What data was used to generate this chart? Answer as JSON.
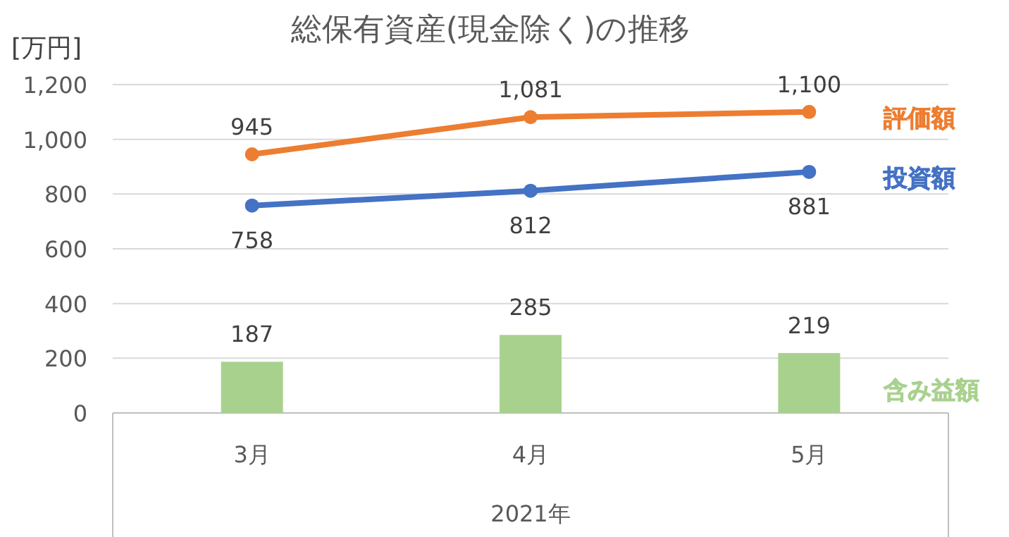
{
  "chart_data": {
    "type": "bar",
    "title": "総保有資産(現金除く)の推移",
    "ylabel": "[万円]",
    "xlabel": "2021年",
    "categories": [
      "3月",
      "4月",
      "5月"
    ],
    "ylim": [
      0,
      1200
    ],
    "yticks": [
      0,
      200,
      400,
      600,
      800,
      {
        "value": 1000,
        "label": "1,000"
      },
      {
        "value": 1200,
        "label": "1,200"
      }
    ],
    "grid": "y",
    "marker": "circle",
    "data_labels": true,
    "series": [
      {
        "name": "評価額",
        "type": "line",
        "color": "#ed7d31",
        "values": [
          945,
          1081,
          1100
        ],
        "value_labels": [
          "945",
          "1,081",
          "1,100"
        ]
      },
      {
        "name": "投資額",
        "type": "line",
        "color": "#4472c4",
        "values": [
          758,
          812,
          881
        ]
      },
      {
        "name": "含み益額",
        "color": "#a9d18e",
        "values": [
          187,
          285,
          219
        ]
      }
    ]
  }
}
